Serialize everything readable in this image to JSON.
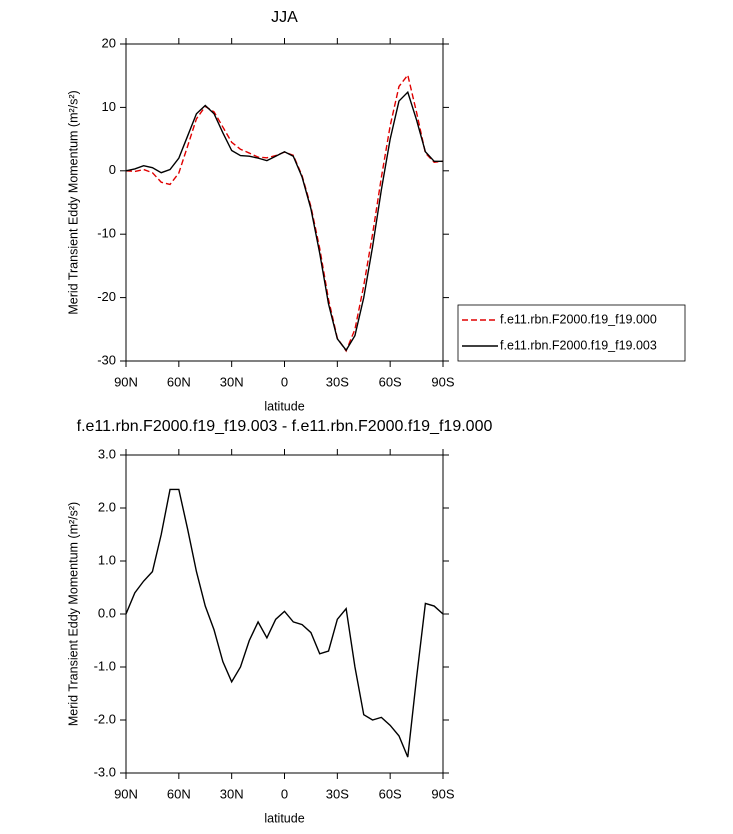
{
  "chart_data": [
    {
      "type": "line",
      "title": "JJA",
      "x_label": "latitude",
      "y_label": "Merid Transient Eddy Momentum (m²/s²)",
      "x": [
        90,
        85,
        80,
        75,
        70,
        65,
        60,
        55,
        50,
        45,
        40,
        35,
        30,
        25,
        20,
        15,
        10,
        5,
        0,
        -5,
        -10,
        -15,
        -20,
        -25,
        -30,
        -35,
        -40,
        -45,
        -50,
        -55,
        -60,
        -65,
        -70,
        -75,
        -80,
        -85,
        -90
      ],
      "series": [
        {
          "name": "f.e11.rbn.F2000.f19_f19.000",
          "color": "#e00000",
          "dash": true,
          "values": [
            0,
            -0.1,
            0.2,
            -0.3,
            -1.8,
            -2.15,
            -0.35,
            3.9,
            8.2,
            10.15,
            9.3,
            6.9,
            4.5,
            3.4,
            2.8,
            2.15,
            2.05,
            2.4,
            2.95,
            2.45,
            -0.8,
            -5.65,
            -12.25,
            -20.3,
            -26.4,
            -28.4,
            -25,
            -18.1,
            -10,
            -1.05,
            7.1,
            13.3,
            15.1,
            9.2,
            2.8,
            1.35,
            1.5
          ]
        },
        {
          "name": "f.e11.rbn.F2000.f19_f19.003",
          "color": "#000000",
          "dash": false,
          "values": [
            0,
            0.3,
            0.8,
            0.5,
            -0.3,
            0.2,
            2,
            5.5,
            9,
            10.3,
            9,
            6,
            3.2,
            2.4,
            2.3,
            2.0,
            1.6,
            2.3,
            3,
            2.3,
            -1,
            -6,
            -13,
            -21,
            -26.5,
            -28.3,
            -26,
            -20,
            -12,
            -3,
            5,
            11,
            12.4,
            8,
            3,
            1.5,
            1.5
          ]
        }
      ],
      "xlim": [
        90,
        -90
      ],
      "xticks": [
        {
          "value": 90,
          "label": "90N"
        },
        {
          "value": 60,
          "label": "60N"
        },
        {
          "value": 30,
          "label": "30N"
        },
        0,
        {
          "value": -30,
          "label": "30S"
        },
        {
          "value": -60,
          "label": "60S"
        },
        {
          "value": -90,
          "label": "90S"
        }
      ],
      "ylim": [
        -30,
        20
      ],
      "yticks": [
        20,
        10,
        0,
        -10,
        -20,
        -30
      ],
      "legend": "right"
    },
    {
      "type": "line",
      "title": "f.e11.rbn.F2000.f19_f19.003 - f.e11.rbn.F2000.f19_f19.000",
      "x_label": "latitude",
      "y_label": "Merid Transient Eddy Momentum (m²/s²)",
      "x": [
        90,
        85,
        80,
        75,
        70,
        65,
        60,
        55,
        50,
        45,
        40,
        35,
        30,
        25,
        20,
        15,
        10,
        5,
        0,
        -5,
        -10,
        -15,
        -20,
        -25,
        -30,
        -35,
        -40,
        -45,
        -50,
        -55,
        -60,
        -65,
        -70,
        -75,
        -80,
        -85,
        -90
      ],
      "series": [
        {
          "color": "#000000",
          "dash": false,
          "values": [
            0,
            0.4,
            0.62,
            0.8,
            1.5,
            2.35,
            2.35,
            1.6,
            0.8,
            0.15,
            -0.3,
            -0.9,
            -1.28,
            -1.0,
            -0.5,
            -0.15,
            -0.45,
            -0.1,
            0.05,
            -0.15,
            -0.2,
            -0.35,
            -0.75,
            -0.7,
            -0.1,
            0.1,
            -1.0,
            -1.9,
            -2.0,
            -1.95,
            -2.1,
            -2.3,
            -2.7,
            -1.2,
            0.2,
            0.15,
            0.0
          ]
        }
      ],
      "xlim": [
        90,
        -90
      ],
      "xticks": [
        {
          "value": 90,
          "label": "90N"
        },
        {
          "value": 60,
          "label": "60N"
        },
        {
          "value": 30,
          "label": "30N"
        },
        0,
        {
          "value": -30,
          "label": "30S"
        },
        {
          "value": -60,
          "label": "60S"
        },
        {
          "value": -90,
          "label": "90S"
        }
      ],
      "ylim": [
        -3,
        3
      ],
      "yticks": [
        {
          "value": 3,
          "label": "3.0"
        },
        {
          "value": 2,
          "label": "2.0"
        },
        {
          "value": 1,
          "label": "1.0"
        },
        {
          "value": 0,
          "label": "0.0"
        },
        {
          "value": -1,
          "label": "-1.0"
        },
        {
          "value": -2,
          "label": "-2.0"
        },
        {
          "value": -3,
          "label": "-3.0"
        }
      ]
    }
  ]
}
